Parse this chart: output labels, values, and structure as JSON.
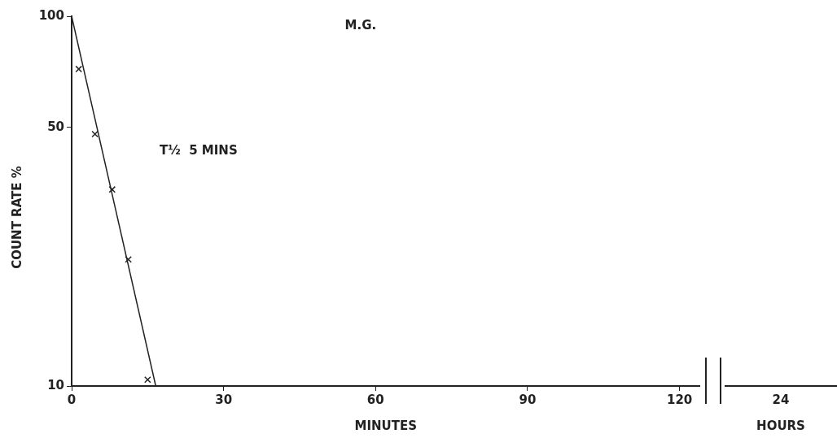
{
  "chart_data": [
    {
      "type": "scatter",
      "title": "M.G.",
      "xlabel": "MINUTES",
      "ylabel": "COUNT RATE %",
      "annotations": [
        "T½  5 MINS"
      ],
      "xlim": [
        0,
        124
      ],
      "xticks": [
        0,
        30,
        60,
        90,
        120
      ],
      "ylim": [
        10,
        100
      ],
      "yticks": [
        10,
        50,
        100
      ],
      "log": "y",
      "grid": false,
      "legend": false,
      "marker": "cross",
      "series": [
        {
          "color": "#222222",
          "x": [
            1.4,
            4.6,
            8,
            11.2,
            15
          ],
          "values": [
            72,
            48,
            34,
            22,
            10.4
          ]
        },
        {
          "type": "line",
          "marker": "none",
          "line_style": "solid",
          "color": "#222222",
          "x": [
            0,
            16.6
          ],
          "values": [
            100,
            10
          ]
        }
      ]
    },
    {
      "type": "line",
      "xlabel": "HOURS",
      "categories": [
        "24"
      ],
      "values": [
        null
      ],
      "ylim": [
        10,
        100
      ],
      "log": "y",
      "tick_labels": "x",
      "grid": false,
      "legend": false
    }
  ]
}
